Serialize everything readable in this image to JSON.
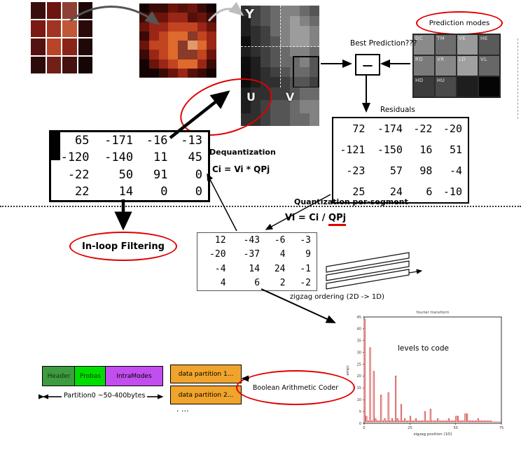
{
  "colors": {
    "red": "#e00000",
    "orange": "#f0a42c"
  },
  "source_image": {
    "cells": [
      "#3a0d0d",
      "#6b1410",
      "#8f4034",
      "#1d0606",
      "#7a1a12",
      "#a03524",
      "#c05838",
      "#2a0a08",
      "#551010",
      "#b8442a",
      "#8a2418",
      "#200808",
      "#2d0a0a",
      "#702018",
      "#441010",
      "#150505"
    ]
  },
  "pixelated_image": {
    "palette": {
      "0": "#140302",
      "1": "#3a0a06",
      "2": "#6b140c",
      "3": "#992616",
      "4": "#c24420",
      "5": "#de6a2e",
      "6": "#8a3a28",
      "7": "#e09a6a",
      "8": "#2a1410",
      "9": "#55100a"
    },
    "rows": [
      "01129210",
      "12233921",
      "23344432",
      "13455643",
      "24456753",
      "13456642",
      "02345531",
      "00123910"
    ]
  },
  "yuv": {
    "y_label": "Y",
    "u_label": "U",
    "v_label": "V",
    "y": {
      "palette": {
        "a": "#0d0d0d",
        "b": "#1e1e1e",
        "c": "#2f2f2f",
        "d": "#404040",
        "e": "#555555",
        "f": "#6a6a6a",
        "g": "#828282",
        "h": "#9c9c9c"
      },
      "rows": [
        "cdefggfe",
        "bdefghgf",
        "bcdfghhg",
        "acdeghhg",
        "bcdefggf",
        "abdeffge",
        "abcdeffe",
        "abccdeed"
      ]
    },
    "u": {
      "palette": {
        "a": "#0d0d0d",
        "b": "#1e1e1e",
        "c": "#2f2f2f",
        "d": "#404040",
        "e": "#555555"
      },
      "rows": [
        "bccd",
        "bcde",
        "ccde"
      ]
    },
    "v": {
      "palette": {
        "d": "#404040",
        "e": "#555555",
        "f": "#6a6a6a",
        "g": "#828282"
      },
      "rows": [
        "deff",
        "efgg",
        "effg"
      ]
    }
  },
  "prediction": {
    "ellipse_label": "Prediction modes",
    "best_label": "Best Prediction???",
    "minus": "—",
    "cells": [
      {
        "label": "DC",
        "shade": "#8a8a8a"
      },
      {
        "label": "TM",
        "shade": "#6e6e6e"
      },
      {
        "label": "VE",
        "shade": "#9a9a9a"
      },
      {
        "label": "HE",
        "shade": "#5a5a5a"
      },
      {
        "label": "RD",
        "shade": "#7a7a7a"
      },
      {
        "label": "VR",
        "shade": "#888888"
      },
      {
        "label": "LD",
        "shade": "#a0a0a0"
      },
      {
        "label": "VL",
        "shade": "#676767"
      },
      {
        "label": "HD",
        "shade": "#3c3c3c"
      },
      {
        "label": "HU",
        "shade": "#4a4a4a"
      },
      {
        "label": "",
        "shade": "#1e1e1e"
      },
      {
        "label": "",
        "shade": "#050505"
      }
    ]
  },
  "residuals": {
    "label": "Residuals",
    "matrix": [
      [
        72,
        -174,
        -22,
        -20
      ],
      [
        -121,
        -150,
        16,
        51
      ],
      [
        -23,
        57,
        98,
        -4
      ],
      [
        25,
        24,
        6,
        -10
      ]
    ]
  },
  "dequant": {
    "label": "Dequantization",
    "formula": "Ci = Vi * QPj",
    "matrix": [
      [
        65,
        -171,
        -16,
        -13
      ],
      [
        -120,
        -140,
        11,
        45
      ],
      [
        -22,
        50,
        91,
        0
      ],
      [
        22,
        14,
        0,
        0
      ]
    ]
  },
  "quant": {
    "label": "Quantization per-segment",
    "formula_pre": "Vi = Ci / ",
    "formula_qp": "QPj",
    "matrix": [
      [
        12,
        -43,
        -6,
        -3
      ],
      [
        -20,
        -37,
        4,
        9
      ],
      [
        -4,
        14,
        24,
        -1
      ],
      [
        4,
        6,
        2,
        -2
      ]
    ]
  },
  "inloop_label": "In-loop Filtering",
  "zigzag_label": "zigzag ordering  (2D -> 1D)",
  "bitstream": {
    "boxes": [
      {
        "label": "Header",
        "color": "#3f9b3f",
        "text": "#06320f"
      },
      {
        "label": "Probas",
        "color": "#00dd00",
        "text": "#0a3a0a"
      },
      {
        "label": "IntraModes",
        "color": "#c24ef0",
        "text": "#000000"
      }
    ],
    "partitions": [
      "data partition 1...",
      "data partition 2..."
    ],
    "partition0_label": "Partition0  ~50-400bytes",
    "dots": ". ...",
    "bac_label": "Boolean Arithmetic Coder"
  },
  "chart_data": {
    "type": "line",
    "title": "fourier transform",
    "annotation": "levels to code",
    "xlabel": "zigzag position  (1D)",
    "ylabel": "ampl.",
    "series_color": "#d04040",
    "xlim": [
      0,
      75
    ],
    "ylim": [
      0,
      45
    ],
    "x_ticks": [
      0,
      25,
      50,
      75
    ],
    "y_ticks": [
      0,
      5,
      10,
      15,
      20,
      25,
      30,
      35,
      40,
      45
    ],
    "values": [
      44,
      3,
      1,
      32,
      1,
      22,
      2,
      1,
      1,
      12,
      1,
      2,
      1,
      13,
      1,
      2,
      1,
      20,
      2,
      1,
      8,
      1,
      2,
      1,
      1,
      3,
      1,
      1,
      2,
      1,
      1,
      1,
      1,
      5,
      1,
      1,
      6,
      1,
      1,
      1,
      2,
      1,
      1,
      1,
      1,
      1,
      2,
      1,
      1,
      1,
      3,
      3,
      1,
      1,
      1,
      4,
      4,
      1,
      1,
      1,
      1,
      1,
      2,
      1,
      1,
      1,
      1,
      1,
      1,
      1
    ]
  }
}
